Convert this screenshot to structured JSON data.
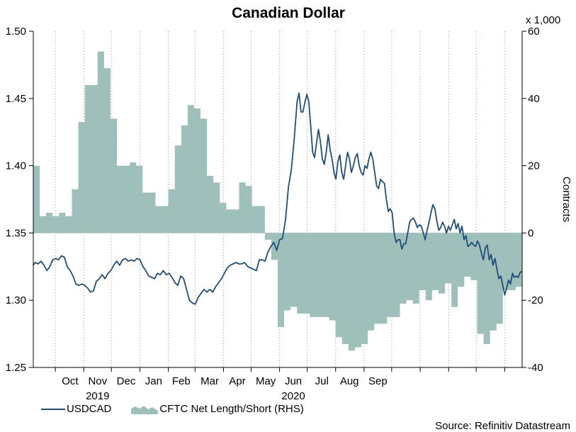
{
  "chart_data": {
    "type": "line",
    "title": "Canadian Dollar",
    "left_axis": {
      "ylim": [
        1.25,
        1.5
      ],
      "ticks": [
        "1.25",
        "1.30",
        "1.35",
        "1.40",
        "1.45",
        "1.50"
      ]
    },
    "right_axis": {
      "label": "Contracts",
      "unit_note": "x 1,000",
      "ylim": [
        -40,
        60
      ],
      "ticks": [
        "-40",
        "-20",
        "0",
        "20",
        "40",
        "60"
      ]
    },
    "x_tick_labels": [
      "Oct",
      "Nov",
      "Dec",
      "Jan",
      "Feb",
      "Mar",
      "Apr",
      "May",
      "Jun",
      "Jul",
      "Aug",
      "Sep"
    ],
    "year_labels": [
      "2019",
      "2020"
    ],
    "grid": "dotted vertical at month starts",
    "series": [
      {
        "name": "USDCAD",
        "color": "#1f4e79",
        "axis": "left",
        "points": [
          [
            0,
            1.326
          ],
          [
            2,
            1.328
          ],
          [
            5,
            1.327
          ],
          [
            8,
            1.329
          ],
          [
            11,
            1.326
          ],
          [
            14,
            1.322
          ],
          [
            17,
            1.325
          ],
          [
            20,
            1.33
          ],
          [
            23,
            1.331
          ],
          [
            26,
            1.33
          ],
          [
            29,
            1.333
          ],
          [
            32,
            1.332
          ],
          [
            35,
            1.325
          ],
          [
            38,
            1.322
          ],
          [
            41,
            1.318
          ],
          [
            44,
            1.312
          ],
          [
            47,
            1.311
          ],
          [
            50,
            1.312
          ],
          [
            53,
            1.311
          ],
          [
            56,
            1.309
          ],
          [
            59,
            1.306
          ],
          [
            62,
            1.307
          ],
          [
            65,
            1.314
          ],
          [
            68,
            1.316
          ],
          [
            71,
            1.319
          ],
          [
            74,
            1.316
          ],
          [
            77,
            1.32
          ],
          [
            80,
            1.322
          ],
          [
            83,
            1.326
          ],
          [
            86,
            1.329
          ],
          [
            89,
            1.326
          ],
          [
            92,
            1.33
          ],
          [
            95,
            1.331
          ],
          [
            98,
            1.329
          ],
          [
            101,
            1.33
          ],
          [
            104,
            1.329
          ],
          [
            107,
            1.331
          ],
          [
            110,
            1.33
          ],
          [
            113,
            1.325
          ],
          [
            116,
            1.322
          ],
          [
            119,
            1.318
          ],
          [
            122,
            1.317
          ],
          [
            125,
            1.316
          ],
          [
            128,
            1.32
          ],
          [
            131,
            1.319
          ],
          [
            134,
            1.322
          ],
          [
            137,
            1.319
          ],
          [
            140,
            1.32
          ],
          [
            143,
            1.317
          ],
          [
            146,
            1.313
          ],
          [
            149,
            1.311
          ],
          [
            152,
            1.318
          ],
          [
            155,
            1.316
          ],
          [
            158,
            1.308
          ],
          [
            161,
            1.3
          ],
          [
            164,
            1.298
          ],
          [
            167,
            1.297
          ],
          [
            170,
            1.302
          ],
          [
            173,
            1.305
          ],
          [
            176,
            1.308
          ],
          [
            179,
            1.306
          ],
          [
            182,
            1.308
          ],
          [
            185,
            1.306
          ],
          [
            188,
            1.31
          ],
          [
            191,
            1.313
          ],
          [
            194,
            1.316
          ],
          [
            197,
            1.32
          ],
          [
            200,
            1.324
          ],
          [
            203,
            1.326
          ],
          [
            206,
            1.327
          ],
          [
            209,
            1.328
          ],
          [
            212,
            1.327
          ],
          [
            215,
            1.327
          ],
          [
            218,
            1.328
          ],
          [
            221,
            1.325
          ],
          [
            224,
            1.324
          ],
          [
            227,
            1.323
          ],
          [
            230,
            1.322
          ],
          [
            233,
            1.33
          ],
          [
            236,
            1.33
          ],
          [
            239,
            1.329
          ],
          [
            242,
            1.336
          ],
          [
            245,
            1.34
          ],
          [
            248,
            1.343
          ],
          [
            251,
            1.337
          ],
          [
            254,
            1.345
          ],
          [
            257,
            1.346
          ],
          [
            260,
            1.36
          ],
          [
            263,
            1.384
          ],
          [
            266,
            1.397
          ],
          [
            269,
            1.42
          ],
          [
            272,
            1.448
          ],
          [
            274,
            1.454
          ],
          [
            276,
            1.44
          ],
          [
            278,
            1.44
          ],
          [
            280,
            1.447
          ],
          [
            282,
            1.453
          ],
          [
            284,
            1.448
          ],
          [
            286,
            1.43
          ],
          [
            288,
            1.41
          ],
          [
            290,
            1.406
          ],
          [
            292,
            1.417
          ],
          [
            294,
            1.427
          ],
          [
            296,
            1.418
          ],
          [
            298,
            1.405
          ],
          [
            300,
            1.401
          ],
          [
            302,
            1.41
          ],
          [
            304,
            1.423
          ],
          [
            306,
            1.412
          ],
          [
            308,
            1.405
          ],
          [
            310,
            1.395
          ],
          [
            312,
            1.39
          ],
          [
            314,
            1.403
          ],
          [
            316,
            1.408
          ],
          [
            318,
            1.395
          ],
          [
            320,
            1.39
          ],
          [
            322,
            1.4
          ],
          [
            324,
            1.41
          ],
          [
            326,
            1.405
          ],
          [
            328,
            1.395
          ],
          [
            330,
            1.4
          ],
          [
            332,
            1.406
          ],
          [
            334,
            1.409
          ],
          [
            336,
            1.4
          ],
          [
            338,
            1.395
          ],
          [
            340,
            1.393
          ],
          [
            342,
            1.4
          ],
          [
            344,
            1.398
          ],
          [
            346,
            1.405
          ],
          [
            348,
            1.41
          ],
          [
            350,
            1.405
          ],
          [
            352,
            1.395
          ],
          [
            354,
            1.385
          ],
          [
            356,
            1.383
          ],
          [
            358,
            1.39
          ],
          [
            360,
            1.388
          ],
          [
            362,
            1.387
          ],
          [
            364,
            1.375
          ],
          [
            366,
            1.366
          ],
          [
            368,
            1.368
          ],
          [
            370,
            1.365
          ],
          [
            372,
            1.35
          ],
          [
            374,
            1.343
          ],
          [
            376,
            1.345
          ],
          [
            378,
            1.345
          ],
          [
            380,
            1.338
          ],
          [
            382,
            1.342
          ],
          [
            384,
            1.342
          ],
          [
            386,
            1.35
          ],
          [
            388,
            1.358
          ],
          [
            390,
            1.36
          ],
          [
            392,
            1.361
          ],
          [
            394,
            1.358
          ],
          [
            396,
            1.354
          ],
          [
            398,
            1.356
          ],
          [
            400,
            1.355
          ],
          [
            402,
            1.35
          ],
          [
            404,
            1.345
          ],
          [
            406,
            1.352
          ],
          [
            408,
            1.358
          ],
          [
            410,
            1.365
          ],
          [
            412,
            1.371
          ],
          [
            414,
            1.368
          ],
          [
            416,
            1.359
          ],
          [
            418,
            1.352
          ],
          [
            420,
            1.354
          ],
          [
            422,
            1.358
          ],
          [
            424,
            1.355
          ],
          [
            426,
            1.35
          ],
          [
            428,
            1.355
          ],
          [
            430,
            1.352
          ],
          [
            432,
            1.356
          ],
          [
            434,
            1.36
          ],
          [
            436,
            1.353
          ],
          [
            438,
            1.357
          ],
          [
            440,
            1.35
          ],
          [
            442,
            1.355
          ],
          [
            444,
            1.345
          ],
          [
            446,
            1.348
          ],
          [
            448,
            1.34
          ],
          [
            450,
            1.341
          ],
          [
            452,
            1.343
          ],
          [
            454,
            1.341
          ],
          [
            456,
            1.34
          ],
          [
            458,
            1.344
          ],
          [
            460,
            1.341
          ],
          [
            462,
            1.335
          ],
          [
            464,
            1.33
          ],
          [
            466,
            1.339
          ],
          [
            468,
            1.341
          ],
          [
            470,
            1.33
          ],
          [
            472,
            1.334
          ],
          [
            474,
            1.326
          ],
          [
            476,
            1.331
          ],
          [
            478,
            1.323
          ],
          [
            480,
            1.316
          ],
          [
            482,
            1.318
          ],
          [
            484,
            1.311
          ],
          [
            486,
            1.304
          ],
          [
            488,
            1.309
          ],
          [
            490,
            1.315
          ],
          [
            492,
            1.312
          ],
          [
            494,
            1.32
          ],
          [
            496,
            1.317
          ],
          [
            498,
            1.318
          ],
          [
            500,
            1.317
          ],
          [
            502,
            1.321
          ],
          [
            504,
            1.321
          ]
        ]
      },
      {
        "name": "CFTC Net Length/Short (RHS)",
        "color": "#9fbfbb",
        "axis": "right",
        "type": "area",
        "weekly_values": [
          [
            0,
            20
          ],
          [
            7,
            5
          ],
          [
            14,
            6
          ],
          [
            21,
            5
          ],
          [
            28,
            6
          ],
          [
            35,
            5
          ],
          [
            42,
            13
          ],
          [
            49,
            33
          ],
          [
            56,
            44
          ],
          [
            63,
            44
          ],
          [
            70,
            54
          ],
          [
            77,
            49
          ],
          [
            84,
            34
          ],
          [
            91,
            20
          ],
          [
            98,
            20
          ],
          [
            105,
            21
          ],
          [
            112,
            20
          ],
          [
            119,
            12
          ],
          [
            126,
            12
          ],
          [
            133,
            8
          ],
          [
            140,
            8
          ],
          [
            147,
            13
          ],
          [
            154,
            26
          ],
          [
            161,
            32
          ],
          [
            168,
            38
          ],
          [
            175,
            37
          ],
          [
            182,
            34
          ],
          [
            189,
            17
          ],
          [
            196,
            15
          ],
          [
            203,
            9
          ],
          [
            210,
            7
          ],
          [
            217,
            7
          ],
          [
            224,
            15
          ],
          [
            231,
            14
          ],
          [
            238,
            8
          ],
          [
            245,
            8
          ],
          [
            252,
            -2
          ],
          [
            259,
            -8
          ],
          [
            266,
            -28
          ],
          [
            273,
            -23
          ],
          [
            280,
            -22
          ],
          [
            287,
            -24
          ],
          [
            294,
            -24
          ],
          [
            301,
            -25
          ],
          [
            308,
            -25
          ],
          [
            315,
            -25
          ],
          [
            322,
            -26
          ],
          [
            329,
            -31
          ],
          [
            336,
            -33
          ],
          [
            343,
            -35
          ],
          [
            350,
            -34
          ],
          [
            357,
            -33
          ],
          [
            364,
            -29
          ],
          [
            371,
            -27
          ],
          [
            378,
            -27
          ],
          [
            385,
            -25
          ],
          [
            392,
            -25
          ],
          [
            399,
            -21
          ],
          [
            406,
            -20
          ],
          [
            413,
            -21
          ],
          [
            420,
            -17
          ],
          [
            427,
            -20
          ],
          [
            434,
            -17
          ],
          [
            441,
            -18
          ],
          [
            448,
            -15
          ],
          [
            455,
            -22
          ],
          [
            462,
            -16
          ],
          [
            469,
            -13
          ],
          [
            476,
            -14
          ],
          [
            483,
            -30
          ],
          [
            490,
            -33
          ],
          [
            497,
            -29
          ],
          [
            504,
            -27
          ],
          [
            511,
            -17
          ],
          [
            518,
            -17
          ],
          [
            525,
            -16
          ]
        ]
      }
    ]
  },
  "legend": {
    "usdcad": "USDCAD",
    "cftc": "CFTC Net Length/Short (RHS)"
  },
  "source": "Source: Refinitiv Datastream"
}
